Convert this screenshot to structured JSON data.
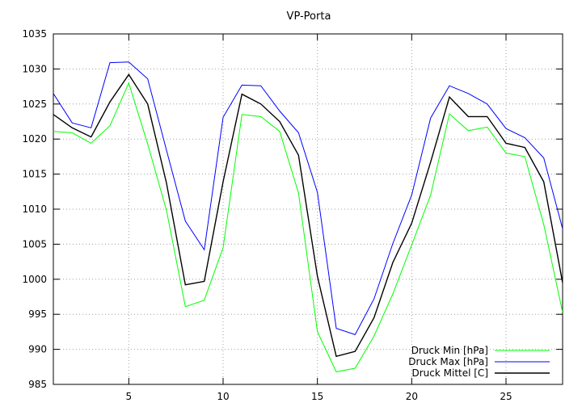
{
  "chart_data": {
    "type": "line",
    "title": "VP-Porta",
    "xlabel": "",
    "ylabel": "",
    "xlim": [
      1,
      28
    ],
    "ylim": [
      985,
      1035
    ],
    "xticks": [
      5,
      10,
      15,
      20,
      25
    ],
    "yticks": [
      985,
      990,
      995,
      1000,
      1005,
      1010,
      1015,
      1020,
      1025,
      1030,
      1035
    ],
    "grid": true,
    "legend_position": "bottom-right",
    "x": [
      1,
      2,
      3,
      4,
      5,
      6,
      7,
      8,
      9,
      10,
      11,
      12,
      13,
      14,
      15,
      16,
      17,
      18,
      19,
      20,
      21,
      22,
      23,
      24,
      25,
      26,
      27,
      28
    ],
    "series": [
      {
        "name": "Druck Min [hPa]",
        "color": "#00ff00",
        "values": [
          1021.1,
          1020.9,
          1019.4,
          1021.9,
          1028.0,
          1019.3,
          1009.8,
          996.1,
          997.0,
          1004.5,
          1023.5,
          1023.2,
          1021.1,
          1012.3,
          992.5,
          986.8,
          987.3,
          991.9,
          997.9,
          1004.9,
          1012.0,
          1023.6,
          1021.2,
          1021.7,
          1018.0,
          1017.5,
          1007.8,
          995.3
        ]
      },
      {
        "name": "Druck Max [hPa]",
        "color": "#0000ff",
        "values": [
          1026.5,
          1022.3,
          1021.6,
          1030.9,
          1031.0,
          1028.6,
          1018.4,
          1008.3,
          1004.2,
          1023.1,
          1027.7,
          1027.6,
          1024.0,
          1020.9,
          1012.4,
          993.0,
          992.1,
          997.2,
          1005.1,
          1012.0,
          1023.0,
          1027.6,
          1026.5,
          1025.0,
          1021.5,
          1020.2,
          1017.3,
          1007.2
        ]
      },
      {
        "name": "Druck Mittel [C]",
        "color": "#000000",
        "values": [
          1023.5,
          1021.6,
          1020.3,
          1025.3,
          1029.2,
          1025.0,
          1013.7,
          999.2,
          999.7,
          1013.9,
          1026.4,
          1025.0,
          1022.5,
          1017.7,
          1000.4,
          989.0,
          989.7,
          994.5,
          1002.4,
          1008.0,
          1016.7,
          1026.0,
          1023.2,
          1023.2,
          1019.4,
          1018.8,
          1013.9,
          999.5
        ]
      }
    ]
  }
}
